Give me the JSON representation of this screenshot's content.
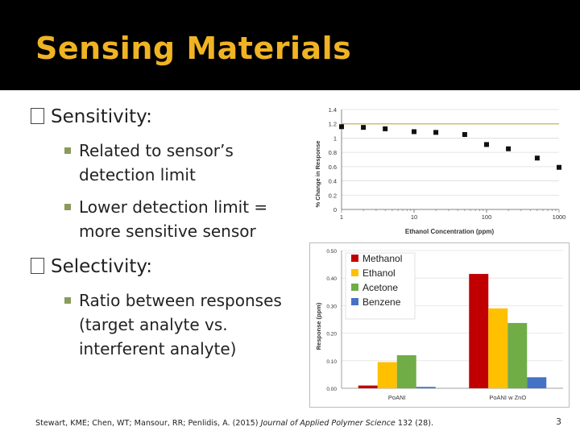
{
  "slide": {
    "title": "Sensing Materials",
    "page_number": "3",
    "citation_authors": "Stewart, KME; Chen, WT; Mansour, RR; Penlidis, A. (2015) ",
    "citation_journal": "Journal of Applied Polymer Science",
    "citation_volume": " 132 (28)."
  },
  "bullets": [
    {
      "label": "Sensitivity:",
      "sub": [
        "Related to sensor’s detection limit",
        "Lower detection limit = more sensitive sensor"
      ]
    },
    {
      "label": "Selectivity:",
      "sub": [
        "Ratio between responses (target analyte vs. interferent analyte)"
      ]
    }
  ],
  "colors": {
    "title": "#f0b323",
    "bullet_square": "#8a9a5b",
    "methanol": "#c00000",
    "ethanol": "#ffc000",
    "acetone": "#70ad47",
    "benzene": "#4472c4",
    "ref_line": "#c8b560"
  },
  "chart_data": [
    {
      "type": "scatter",
      "xscale": "log",
      "xlabel": "Ethanol Concentration (ppm)",
      "ylabel": "% Change in Response",
      "xticks": [
        "1",
        "10",
        "100",
        "1000"
      ],
      "yticks": [
        "0",
        "0.2",
        "0.4",
        "0.6",
        "0.8",
        "1",
        "1.2",
        "1.4"
      ],
      "ylim": [
        0,
        1.4
      ],
      "xlim": [
        1,
        1000
      ],
      "reference_line": 1.2,
      "x": [
        1,
        2,
        4,
        10,
        20,
        50,
        100,
        200,
        500,
        1000
      ],
      "y": [
        1.16,
        1.15,
        1.13,
        1.09,
        1.08,
        1.05,
        0.91,
        0.85,
        0.72,
        0.59
      ]
    },
    {
      "type": "bar",
      "ylabel": "Response (ppm)",
      "categories": [
        "PoANI",
        "PoANI w ZnO"
      ],
      "yticks": [
        "0.00",
        "0.10",
        "0.20",
        "0.30",
        "0.40",
        "0.50"
      ],
      "ylim": [
        0,
        0.5
      ],
      "legend_position": "top-left",
      "series": [
        {
          "name": "Methanol",
          "values": [
            0.01,
            0.415
          ]
        },
        {
          "name": "Ethanol",
          "values": [
            0.095,
            0.29
          ]
        },
        {
          "name": "Acetone",
          "values": [
            0.12,
            0.237
          ]
        },
        {
          "name": "Benzene",
          "values": [
            0.005,
            0.04
          ]
        }
      ]
    }
  ]
}
